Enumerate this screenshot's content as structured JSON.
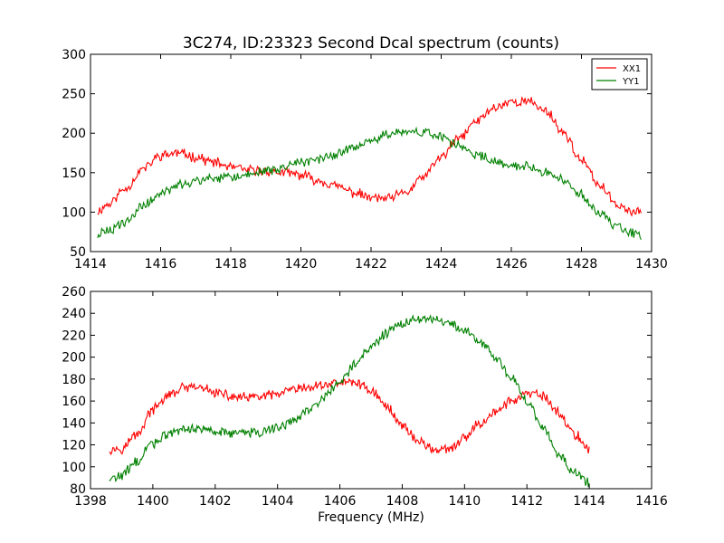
{
  "chart_data": [
    {
      "type": "line",
      "title": "3C274, ID:23323 Second Dcal spectrum (counts)",
      "xlabel": "",
      "ylabel": "",
      "xlim": [
        1414,
        1430
      ],
      "ylim": [
        50,
        300
      ],
      "xticks": [
        "1414",
        "1416",
        "1418",
        "1420",
        "1422",
        "1424",
        "1426",
        "1428",
        "1430"
      ],
      "yticks": [
        "50",
        "100",
        "150",
        "200",
        "250",
        "300"
      ],
      "legend": "top-right",
      "grid": false,
      "series": [
        {
          "name": "XX1",
          "color": "#ff0000",
          "x": [
            1414.2,
            1414.5,
            1415.0,
            1415.5,
            1416.0,
            1416.5,
            1417.0,
            1417.5,
            1418.0,
            1418.5,
            1419.0,
            1419.5,
            1420.0,
            1420.5,
            1421.0,
            1421.5,
            1422.0,
            1422.5,
            1423.0,
            1423.5,
            1424.0,
            1424.5,
            1425.0,
            1425.5,
            1426.0,
            1426.5,
            1427.0,
            1427.5,
            1428.0,
            1428.5,
            1429.0,
            1429.5,
            1429.7
          ],
          "values": [
            101,
            110,
            130,
            155,
            172,
            175,
            170,
            163,
            157,
            153,
            152,
            150,
            147,
            140,
            133,
            125,
            118,
            117,
            125,
            145,
            170,
            193,
            215,
            232,
            240,
            240,
            228,
            200,
            165,
            135,
            110,
            100,
            102
          ]
        },
        {
          "name": "YY1",
          "color": "#008000",
          "x": [
            1414.2,
            1414.5,
            1415.0,
            1415.5,
            1416.0,
            1416.5,
            1417.0,
            1417.5,
            1418.0,
            1418.5,
            1419.0,
            1419.5,
            1420.0,
            1420.5,
            1421.0,
            1421.5,
            1422.0,
            1422.5,
            1423.0,
            1423.5,
            1424.0,
            1424.5,
            1425.0,
            1425.5,
            1426.0,
            1426.5,
            1427.0,
            1427.5,
            1428.0,
            1428.5,
            1429.0,
            1429.5,
            1429.7
          ],
          "values": [
            72,
            75,
            88,
            108,
            123,
            133,
            140,
            142,
            144,
            147,
            152,
            157,
            163,
            168,
            173,
            181,
            190,
            198,
            202,
            201,
            195,
            184,
            172,
            165,
            160,
            157,
            150,
            140,
            122,
            98,
            82,
            73,
            70
          ]
        }
      ]
    },
    {
      "type": "line",
      "title": "",
      "xlabel": "Frequency (MHz)",
      "ylabel": "",
      "xlim": [
        1398,
        1416
      ],
      "ylim": [
        80,
        260
      ],
      "xticks": [
        "1398",
        "1400",
        "1402",
        "1404",
        "1406",
        "1408",
        "1410",
        "1412",
        "1414",
        "1416"
      ],
      "yticks": [
        "80",
        "100",
        "120",
        "140",
        "160",
        "180",
        "200",
        "220",
        "240",
        "260"
      ],
      "grid": false,
      "series": [
        {
          "name": "XX1",
          "color": "#ff0000",
          "x": [
            1398.6,
            1399.0,
            1399.5,
            1400.0,
            1400.5,
            1401.0,
            1401.5,
            1402.0,
            1402.5,
            1403.0,
            1403.5,
            1404.0,
            1404.5,
            1405.0,
            1405.5,
            1406.0,
            1406.5,
            1407.0,
            1407.5,
            1408.0,
            1408.5,
            1409.0,
            1409.5,
            1410.0,
            1410.5,
            1411.0,
            1411.5,
            1412.0,
            1412.5,
            1413.0,
            1413.5,
            1414.0
          ],
          "values": [
            116,
            117,
            130,
            152,
            165,
            172,
            172,
            168,
            164,
            163,
            164,
            166,
            170,
            172,
            175,
            177,
            177,
            170,
            155,
            138,
            124,
            116,
            115,
            126,
            140,
            150,
            160,
            166,
            165,
            150,
            130,
            117
          ]
        },
        {
          "name": "YY1",
          "color": "#008000",
          "x": [
            1398.6,
            1399.0,
            1399.5,
            1400.0,
            1400.5,
            1401.0,
            1401.5,
            1402.0,
            1402.5,
            1403.0,
            1403.5,
            1404.0,
            1404.5,
            1405.0,
            1405.5,
            1406.0,
            1406.5,
            1407.0,
            1407.5,
            1408.0,
            1408.5,
            1409.0,
            1409.5,
            1410.0,
            1410.5,
            1411.0,
            1411.5,
            1412.0,
            1412.5,
            1413.0,
            1413.5,
            1414.0
          ],
          "values": [
            88,
            92,
            105,
            122,
            130,
            134,
            135,
            133,
            131,
            131,
            132,
            136,
            142,
            152,
            163,
            177,
            195,
            210,
            222,
            230,
            235,
            234,
            230,
            224,
            214,
            200,
            182,
            160,
            135,
            112,
            95,
            85
          ]
        }
      ]
    }
  ]
}
